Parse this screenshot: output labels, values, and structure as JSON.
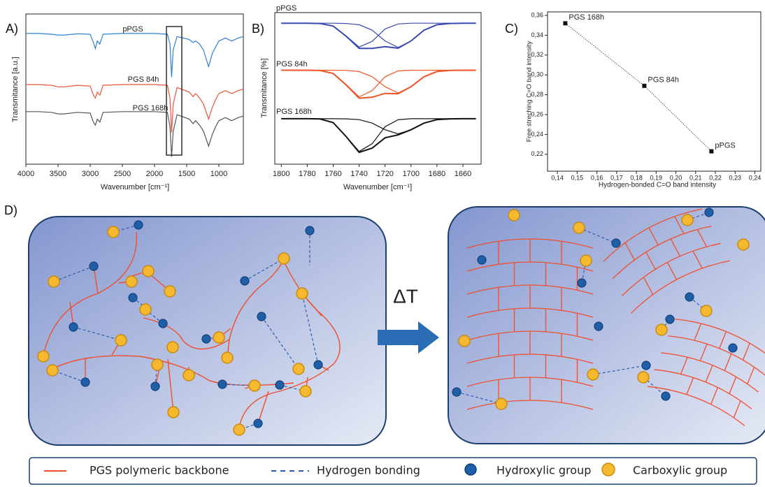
{
  "chart_data": [
    {
      "panel_label": "A)",
      "type": "line",
      "x_label": "Wavenumber [cm⁻¹]",
      "y_label": "Transmitance [a.u.]",
      "x": [
        4000,
        3800,
        3600,
        3500,
        3400,
        3200,
        3000,
        2950,
        2920,
        2890,
        2850,
        2800,
        2500,
        2200,
        2000,
        1800,
        1760,
        1735,
        1710,
        1650,
        1460,
        1400,
        1360,
        1300,
        1240,
        1160,
        1100,
        1050,
        1000,
        900,
        800,
        700,
        620
      ],
      "xlim": [
        4000,
        620
      ],
      "xticks": [
        4000,
        3500,
        3000,
        2500,
        2000,
        1500,
        1000
      ],
      "ylim": [
        0,
        100
      ],
      "series": [
        {
          "name": "pPGS",
          "color": "#2f7fd0",
          "values": [
            87,
            87,
            86.5,
            86,
            86,
            86.8,
            86.5,
            81,
            77,
            82,
            80,
            86.5,
            87,
            87,
            87,
            86.5,
            80,
            58,
            76,
            85,
            83,
            81,
            82,
            80,
            76,
            65,
            74,
            78,
            82,
            84,
            82,
            84,
            85
          ]
        },
        {
          "name": "PGS 84h",
          "color": "#e8563a",
          "values": [
            53,
            53,
            52.5,
            51.5,
            51.5,
            52.5,
            52,
            46,
            44,
            48,
            46,
            52.5,
            53,
            53,
            53,
            52.5,
            44,
            21,
            40,
            51,
            48,
            45,
            47,
            44,
            40,
            30,
            38,
            43,
            47,
            49,
            47,
            49,
            50
          ]
        },
        {
          "name": "PGS 168h",
          "color": "#555555",
          "values": [
            35,
            35,
            34.5,
            33.5,
            33.5,
            34.5,
            34,
            28,
            26,
            30,
            28,
            34.5,
            35,
            35,
            35,
            34.5,
            25,
            5,
            22,
            33,
            30,
            27,
            29,
            26,
            22,
            12,
            20,
            25,
            29,
            31,
            29,
            31,
            32
          ]
        }
      ]
    },
    {
      "panel_label": "B)",
      "type": "line",
      "x_label": "Wavenumber [cm⁻¹]",
      "y_label": "Transmitance [%]",
      "x": [
        1800,
        1790,
        1780,
        1770,
        1760,
        1750,
        1740,
        1730,
        1720,
        1710,
        1700,
        1690,
        1680,
        1670,
        1660,
        1650
      ],
      "xlim": [
        1805,
        1646
      ],
      "xticks": [
        1800,
        1780,
        1760,
        1740,
        1720,
        1700,
        1680,
        1660
      ],
      "ylim": [
        0,
        100
      ],
      "series": [
        {
          "name": "pPGS",
          "color": "#3a49b0",
          "values": [
            93,
            93,
            93,
            92.8,
            91.1,
            84.4,
            76.4,
            76.4,
            77.5,
            76.5,
            81.3,
            88.4,
            92,
            92.8,
            93,
            93
          ],
          "components": [
            [
              93,
              93,
              93,
              92.8,
              91.1,
              84.5,
              77.3,
              81,
              89.2,
              92.5,
              93,
              93,
              93,
              93,
              93,
              93
            ],
            [
              93,
              93,
              93,
              93,
              93,
              92.8,
              92,
              88.4,
              81.3,
              77,
              81.3,
              88.4,
              92,
              92.8,
              93,
              93
            ]
          ]
        },
        {
          "name": "PGS 84h",
          "color": "#f0552a",
          "values": [
            62,
            62,
            62,
            61.8,
            59.8,
            52.3,
            43.5,
            44.2,
            46.7,
            46.5,
            51.1,
            57.7,
            61.1,
            61.9,
            62,
            62
          ],
          "components": [
            [
              62,
              62,
              62,
              61.8,
              59.8,
              52.5,
              44.4,
              48.5,
              57.7,
              61.5,
              62,
              62,
              62,
              62,
              62,
              62
            ],
            [
              62,
              62,
              62,
              62,
              62,
              61.9,
              61.1,
              57.7,
              51.1,
              47,
              51.1,
              57.7,
              61.1,
              61.9,
              62,
              62
            ]
          ]
        },
        {
          "name": "PGS 168h",
          "color": "#111111",
          "values": [
            30,
            30,
            30,
            29.8,
            27.4,
            18.2,
            7.8,
            10.6,
            17.4,
            19.3,
            22.7,
            27.1,
            29.4,
            29.9,
            30,
            30
          ],
          "components": [
            [
              30,
              30,
              30,
              29.8,
              27.4,
              18.3,
              8.4,
              13.5,
              24.7,
              29.3,
              30,
              30,
              30,
              30,
              30,
              30
            ],
            [
              30,
              30,
              30,
              30,
              30,
              29.9,
              29.4,
              27.1,
              22.7,
              20,
              22.7,
              27.1,
              29.4,
              29.9,
              30,
              30
            ]
          ]
        }
      ]
    },
    {
      "panel_label": "C)",
      "type": "scatter",
      "x_label": "Hydrogen-bonded C=O band intensity",
      "y_label": "Free streching C=O band intensity",
      "x": [
        0.144,
        0.184,
        0.218
      ],
      "values": [
        0.352,
        0.289,
        0.223
      ],
      "point_labels": [
        "PGS 168h",
        "PGS 84h",
        "pPGS"
      ],
      "color": "#111111",
      "xlim": [
        0.135,
        0.243
      ],
      "ylim": [
        0.203,
        0.3635
      ],
      "xticks": [
        {
          "value": 0.14,
          "label": "0,14"
        },
        {
          "value": 0.15,
          "label": "0,15"
        },
        {
          "value": 0.16,
          "label": "0,16"
        },
        {
          "value": 0.17,
          "label": "0,17"
        },
        {
          "value": 0.18,
          "label": "0,18"
        },
        {
          "value": 0.19,
          "label": "0,19"
        },
        {
          "value": 0.2,
          "label": "0,20"
        },
        {
          "value": 0.21,
          "label": "0,21"
        },
        {
          "value": 0.22,
          "label": "0,22"
        },
        {
          "value": 0.23,
          "label": "0,23"
        },
        {
          "value": 0.24,
          "label": "0,24"
        }
      ],
      "yticks": [
        {
          "value": 0.22,
          "label": "0,22"
        },
        {
          "value": 0.24,
          "label": "0,24"
        },
        {
          "value": 0.26,
          "label": "0,26"
        },
        {
          "value": 0.28,
          "label": "0,28"
        },
        {
          "value": 0.3,
          "label": "0,30"
        },
        {
          "value": 0.32,
          "label": "0,32"
        },
        {
          "value": 0.34,
          "label": "0,34"
        },
        {
          "value": 0.36,
          "label": "0,36"
        }
      ]
    }
  ],
  "diagram": {
    "panel_label": "D)",
    "arrow_label": "ΔT",
    "legend": [
      "PGS polymeric backbone",
      "Hydrogen bonding",
      "Hydroxylic group",
      "Carboxylic group"
    ]
  }
}
